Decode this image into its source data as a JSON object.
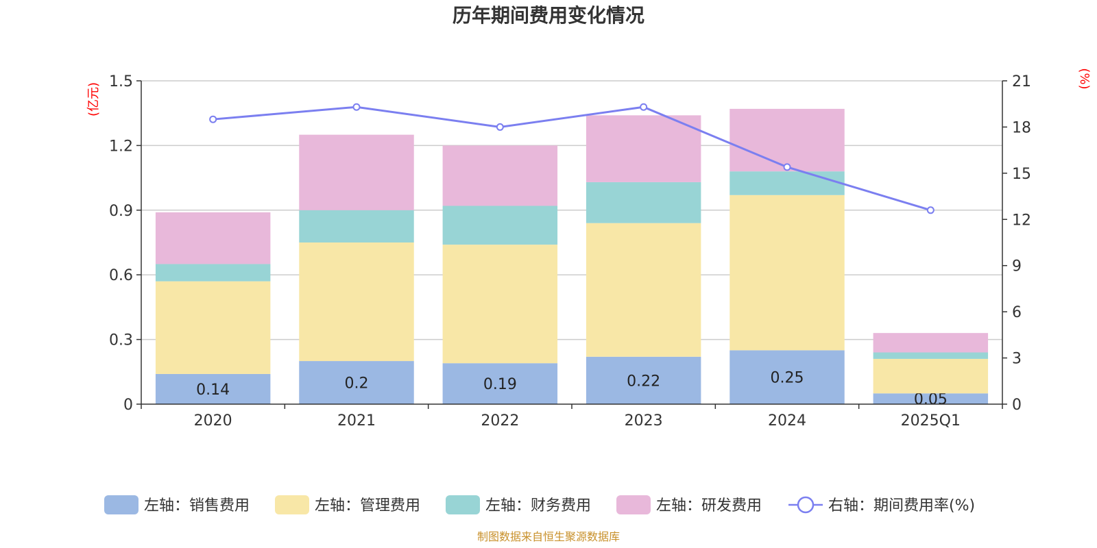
{
  "chart_data": {
    "type": "bar",
    "title": "历年期间费用变化情况",
    "categories": [
      "2020",
      "2021",
      "2022",
      "2023",
      "2024",
      "2025Q1"
    ],
    "left_axis": {
      "unit": "(亿元)",
      "ylim": [
        0,
        1.5
      ],
      "ticks": [
        0,
        0.3,
        0.6,
        0.9,
        1.2,
        1.5
      ],
      "tick_labels": [
        "0",
        "0.3",
        "0.6",
        "0.9",
        "1.2",
        "1.5"
      ]
    },
    "right_axis": {
      "unit": "(%)",
      "ylim": [
        0,
        21
      ],
      "ticks": [
        0,
        3,
        6,
        9,
        12,
        15,
        18,
        21
      ],
      "tick_labels": [
        "0",
        "3",
        "6",
        "9",
        "12",
        "15",
        "18",
        "21"
      ]
    },
    "series": [
      {
        "name": "左轴：销售费用",
        "axis": "left",
        "kind": "stacked-bar",
        "color": "#9bb8e3",
        "values": [
          0.14,
          0.2,
          0.19,
          0.22,
          0.25,
          0.05
        ],
        "labels": [
          "0.14",
          "0.2",
          "0.19",
          "0.22",
          "0.25",
          "0.05"
        ]
      },
      {
        "name": "左轴：管理费用",
        "axis": "left",
        "kind": "stacked-bar",
        "color": "#f8e7a7",
        "values": [
          0.43,
          0.55,
          0.55,
          0.62,
          0.72,
          0.16
        ]
      },
      {
        "name": "左轴：财务费用",
        "axis": "left",
        "kind": "stacked-bar",
        "color": "#98d4d5",
        "values": [
          0.08,
          0.15,
          0.18,
          0.19,
          0.11,
          0.03
        ]
      },
      {
        "name": "左轴：研发费用",
        "axis": "left",
        "kind": "stacked-bar",
        "color": "#e8b8da",
        "values": [
          0.24,
          0.35,
          0.28,
          0.31,
          0.29,
          0.09
        ]
      },
      {
        "name": "右轴：期间费用率(%)",
        "axis": "right",
        "kind": "line",
        "color": "#7b7ff0",
        "values": [
          18.5,
          19.3,
          18.0,
          19.3,
          15.4,
          12.6
        ]
      }
    ],
    "grid": true,
    "legend_position": "bottom"
  },
  "source_text": "制图数据来自恒生聚源数据库"
}
